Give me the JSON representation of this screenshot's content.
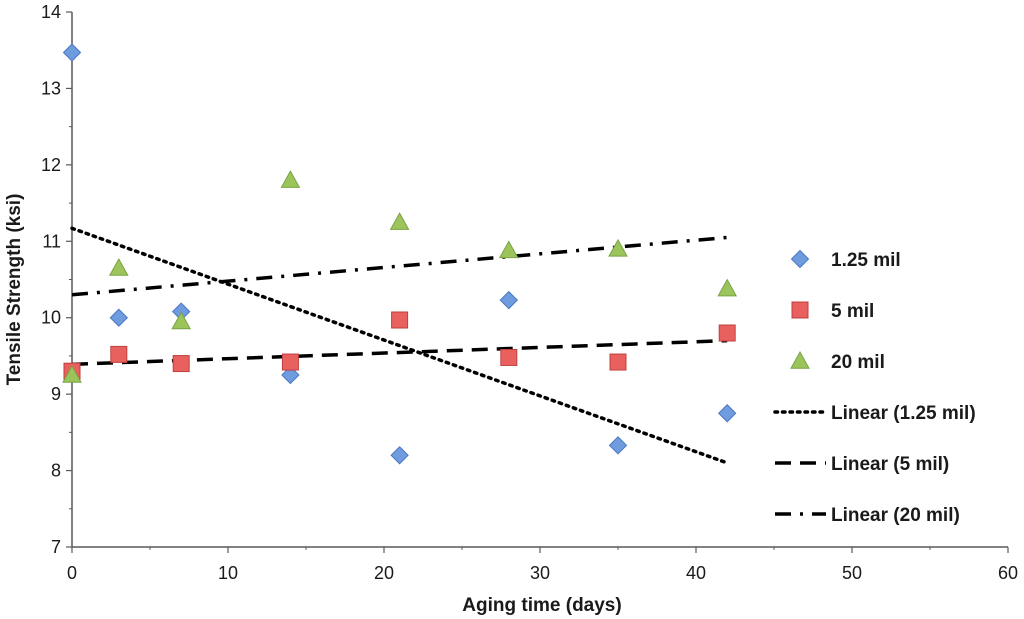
{
  "chart_data": {
    "type": "scatter",
    "title": "",
    "xlabel": "Aging time (days)",
    "ylabel": "Tensile Strength (ksi)",
    "xlim": [
      0,
      60
    ],
    "ylim": [
      7,
      14
    ],
    "xticks": [
      0,
      10,
      20,
      30,
      40,
      50,
      60
    ],
    "yticks": [
      7,
      8,
      9,
      10,
      11,
      12,
      13,
      14
    ],
    "grid": false,
    "legend_position": "right",
    "series": [
      {
        "name": "1.25 mil",
        "marker": "diamond",
        "color": "#6f9bdf",
        "x": [
          0,
          3,
          7,
          14,
          21,
          28,
          35,
          42
        ],
        "y": [
          13.47,
          10.0,
          10.08,
          9.25,
          8.2,
          10.23,
          8.33,
          8.75
        ]
      },
      {
        "name": "5 mil",
        "marker": "square",
        "color": "#e8615f",
        "x": [
          0,
          3,
          7,
          14,
          21,
          28,
          35,
          42
        ],
        "y": [
          9.3,
          9.52,
          9.4,
          9.42,
          9.97,
          9.48,
          9.42,
          9.8
        ]
      },
      {
        "name": "20 mil",
        "marker": "triangle",
        "color": "#9bc55b",
        "x": [
          0,
          3,
          7,
          14,
          21,
          28,
          35,
          42
        ],
        "y": [
          9.25,
          10.65,
          9.95,
          11.8,
          11.25,
          10.88,
          10.9,
          10.38
        ]
      }
    ],
    "trendlines": [
      {
        "name": "Linear (1.25 mil)",
        "style": "dotted",
        "x": [
          0,
          42
        ],
        "y": [
          11.17,
          8.1
        ]
      },
      {
        "name": "Linear (5 mil)",
        "style": "dashed",
        "x": [
          0,
          42
        ],
        "y": [
          9.39,
          9.7
        ]
      },
      {
        "name": "Linear (20 mil)",
        "style": "dash-dot",
        "x": [
          0,
          42
        ],
        "y": [
          10.3,
          11.05
        ]
      }
    ]
  }
}
